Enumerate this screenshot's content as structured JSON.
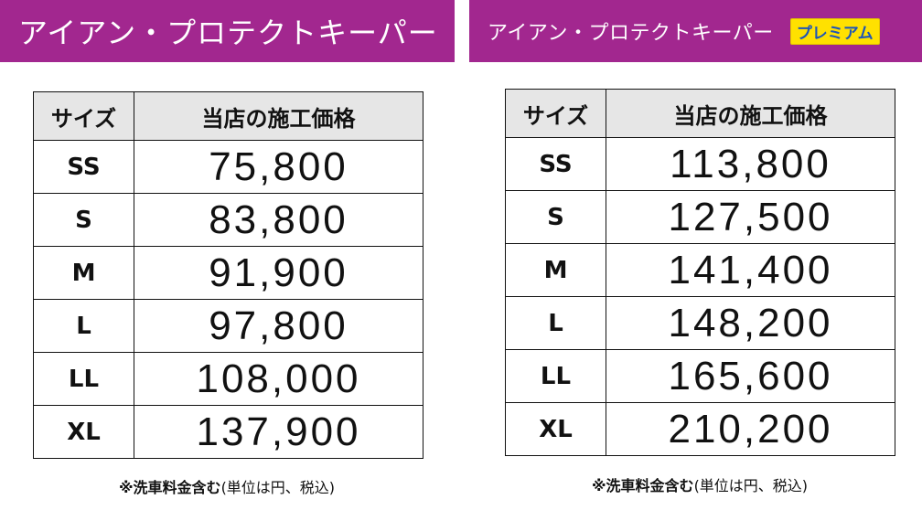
{
  "left": {
    "title": "アイアン・プロテクトキーパー",
    "header_size": "サイズ",
    "header_price": "当店の施工価格",
    "rows": [
      {
        "size": "SS",
        "price": "75,800"
      },
      {
        "size": "S",
        "price": "83,800"
      },
      {
        "size": "M",
        "price": "91,900"
      },
      {
        "size": "L",
        "price": "97,800"
      },
      {
        "size": "LL",
        "price": "108,000"
      },
      {
        "size": "XL",
        "price": "137,900"
      }
    ],
    "note_bold": "※洗車料金含む",
    "note_rest": "(単位は円、税込)"
  },
  "right": {
    "title": "アイアン・プロテクトキーパー",
    "badge": "プレミアム",
    "header_size": "サイズ",
    "header_price": "当店の施工価格",
    "rows": [
      {
        "size": "SS",
        "price": "113,800"
      },
      {
        "size": "S",
        "price": "127,500"
      },
      {
        "size": "M",
        "price": "141,400"
      },
      {
        "size": "L",
        "price": "148,200"
      },
      {
        "size": "LL",
        "price": "165,600"
      },
      {
        "size": "XL",
        "price": "210,200"
      }
    ],
    "note_bold": "※洗車料金含む",
    "note_rest": "(単位は円、税込)"
  },
  "colors": {
    "banner": "#a2278f",
    "badge_bg": "#ffe100",
    "badge_text": "#1d55b8",
    "header_bg": "#e6e6e6"
  }
}
